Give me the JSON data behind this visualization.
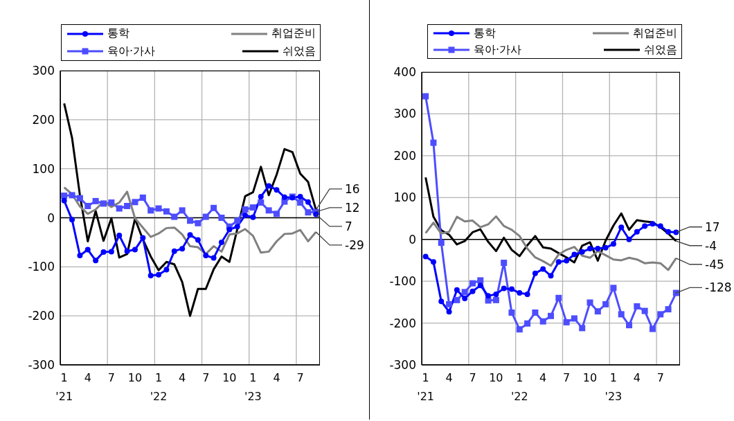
{
  "chart_data": [
    {
      "type": "line",
      "categories": [
        "1\n'21",
        null,
        null,
        "4",
        null,
        null,
        "7",
        null,
        null,
        "10",
        null,
        null,
        "1\n'22",
        null,
        null,
        "4",
        null,
        null,
        "7",
        null,
        null,
        "10",
        null,
        null,
        "1\n'23",
        null,
        null,
        "4",
        null,
        null,
        "7",
        null,
        null
      ],
      "series": [
        {
          "name": "통학",
          "color": "#0000ff",
          "marker": "circle",
          "value_labels": [
            null,
            null,
            null,
            null,
            null,
            null,
            null,
            null,
            null,
            null,
            null,
            null,
            null,
            null,
            null,
            null,
            null,
            null,
            null,
            null,
            null,
            null,
            null,
            null,
            null,
            null,
            null,
            null,
            null,
            null,
            null,
            null,
            "7"
          ],
          "values": [
            35,
            -4,
            -77,
            -65,
            -87,
            -70,
            -69,
            -36,
            -68,
            -65,
            -41,
            -118,
            -116,
            -106,
            -68,
            -63,
            -35,
            -45,
            -77,
            -82,
            -50,
            -24,
            -18,
            5,
            1,
            43,
            65,
            57,
            42,
            41,
            43,
            32,
            7
          ]
        },
        {
          "name": "취업준비",
          "color": "#808080",
          "marker": "none",
          "value_labels": [
            null,
            null,
            null,
            null,
            null,
            null,
            null,
            null,
            null,
            null,
            null,
            null,
            null,
            null,
            null,
            null,
            null,
            null,
            null,
            null,
            null,
            null,
            null,
            null,
            null,
            null,
            null,
            null,
            null,
            null,
            null,
            null,
            "-29"
          ],
          "values": [
            62,
            48,
            23,
            8,
            17,
            33,
            22,
            31,
            53,
            -1,
            -20,
            -39,
            -32,
            -21,
            -20,
            -34,
            -58,
            -60,
            -74,
            -58,
            -69,
            -34,
            -32,
            -23,
            -37,
            -71,
            -69,
            -48,
            -33,
            -32,
            -25,
            -48,
            -29
          ]
        },
        {
          "name": "육아·가사",
          "color": "#4d4dff",
          "marker": "square",
          "value_labels": [
            null,
            null,
            null,
            null,
            null,
            null,
            null,
            null,
            null,
            null,
            null,
            null,
            null,
            null,
            null,
            null,
            null,
            null,
            null,
            null,
            null,
            null,
            null,
            null,
            null,
            null,
            null,
            null,
            null,
            null,
            null,
            null,
            "12"
          ],
          "values": [
            45,
            46,
            40,
            24,
            34,
            29,
            31,
            19,
            24,
            32,
            41,
            15,
            19,
            13,
            2,
            15,
            -6,
            -11,
            2,
            20,
            0,
            -18,
            -6,
            17,
            21,
            31,
            15,
            8,
            33,
            43,
            31,
            11,
            12
          ]
        },
        {
          "name": "쉬었음",
          "color": "#000000",
          "marker": "none",
          "value_labels": [
            null,
            null,
            null,
            null,
            null,
            null,
            null,
            null,
            null,
            null,
            null,
            null,
            null,
            null,
            null,
            null,
            null,
            null,
            null,
            null,
            null,
            null,
            null,
            null,
            null,
            null,
            null,
            null,
            null,
            null,
            null,
            null,
            "16"
          ],
          "values": [
            233,
            163,
            46,
            -48,
            14,
            -47,
            -1,
            -81,
            -74,
            -2,
            -44,
            -79,
            -107,
            -90,
            -95,
            -131,
            -200,
            -145,
            -145,
            -105,
            -79,
            -90,
            -23,
            44,
            52,
            104,
            46,
            88,
            140,
            134,
            90,
            73,
            16
          ]
        }
      ],
      "ylim": [
        -300,
        300
      ],
      "yticks": [
        -300,
        -200,
        -100,
        0,
        100,
        200,
        300
      ],
      "grid": true,
      "legend": "top",
      "ref_lines": [
        {
          "axis": "y",
          "value": 0,
          "color": "#000000"
        }
      ]
    },
    {
      "type": "line",
      "categories": [
        "1\n'21",
        null,
        null,
        "4",
        null,
        null,
        "7",
        null,
        null,
        "10",
        null,
        null,
        "1\n'22",
        null,
        null,
        "4",
        null,
        null,
        "7",
        null,
        null,
        "10",
        null,
        null,
        "1\n'23",
        null,
        null,
        "4",
        null,
        null,
        "7",
        null,
        null
      ],
      "series": [
        {
          "name": "통학",
          "color": "#0000ff",
          "marker": "circle",
          "value_labels": [
            null,
            null,
            null,
            null,
            null,
            null,
            null,
            null,
            null,
            null,
            null,
            null,
            null,
            null,
            null,
            null,
            null,
            null,
            null,
            null,
            null,
            null,
            null,
            null,
            null,
            null,
            null,
            null,
            null,
            null,
            null,
            null,
            "17"
          ],
          "values": [
            -41,
            -54,
            -148,
            -173,
            -121,
            -141,
            -124,
            -110,
            -135,
            -131,
            -117,
            -119,
            -128,
            -131,
            -81,
            -71,
            -87,
            -54,
            -51,
            -36,
            -30,
            -22,
            -22,
            -20,
            -11,
            29,
            0,
            18,
            32,
            37,
            32,
            18,
            17
          ]
        },
        {
          "name": "취업준비",
          "color": "#808080",
          "marker": "none",
          "value_labels": [
            null,
            null,
            null,
            null,
            null,
            null,
            null,
            null,
            null,
            null,
            null,
            null,
            null,
            null,
            null,
            null,
            null,
            null,
            null,
            null,
            null,
            null,
            null,
            null,
            null,
            null,
            null,
            null,
            null,
            null,
            null,
            null,
            "-45"
          ],
          "values": [
            15,
            40,
            14,
            18,
            54,
            43,
            45,
            29,
            36,
            55,
            32,
            23,
            8,
            -22,
            -43,
            -52,
            -63,
            -36,
            -25,
            -18,
            -39,
            -44,
            -28,
            -38,
            -48,
            -50,
            -44,
            -48,
            -57,
            -55,
            -57,
            -73,
            -45
          ]
        },
        {
          "name": "육아·가사",
          "color": "#4d4dff",
          "marker": "square",
          "value_labels": [
            null,
            null,
            null,
            null,
            null,
            null,
            null,
            null,
            null,
            null,
            null,
            null,
            null,
            null,
            null,
            null,
            null,
            null,
            null,
            null,
            null,
            null,
            null,
            null,
            null,
            null,
            null,
            null,
            null,
            null,
            null,
            null,
            "-128"
          ],
          "values": [
            342,
            231,
            -8,
            -155,
            -145,
            -126,
            -105,
            -98,
            -146,
            -145,
            -56,
            -175,
            -215,
            -201,
            -175,
            -196,
            -183,
            -140,
            -198,
            -189,
            -212,
            -151,
            -172,
            -155,
            -116,
            -179,
            -205,
            -160,
            -171,
            -214,
            -179,
            -167,
            -128
          ]
        },
        {
          "name": "쉬었음",
          "color": "#000000",
          "marker": "none",
          "value_labels": [
            null,
            null,
            null,
            null,
            null,
            null,
            null,
            null,
            null,
            null,
            null,
            null,
            null,
            null,
            null,
            null,
            null,
            null,
            null,
            null,
            null,
            null,
            null,
            null,
            null,
            null,
            null,
            null,
            null,
            null,
            null,
            null,
            "-4"
          ],
          "values": [
            148,
            54,
            22,
            11,
            -12,
            -4,
            17,
            24,
            -6,
            -28,
            4,
            -25,
            -40,
            -14,
            8,
            -19,
            -22,
            -33,
            -43,
            -55,
            -15,
            -7,
            -51,
            -3,
            33,
            62,
            23,
            46,
            43,
            41,
            29,
            14,
            -4
          ]
        }
      ],
      "ylim": [
        -300,
        400
      ],
      "yticks": [
        -300,
        -200,
        -100,
        0,
        100,
        200,
        300,
        400
      ],
      "grid": true,
      "legend": "top",
      "ref_lines": [
        {
          "axis": "y",
          "value": 0,
          "color": "#000000"
        }
      ]
    }
  ]
}
